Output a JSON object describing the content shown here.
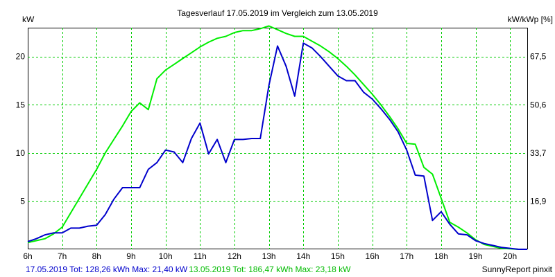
{
  "chart_data": {
    "type": "line",
    "title": "Tagesverlauf 17.05.2019 im Vergleich zum 13.05.2019",
    "ylabel_left": "kW",
    "ylabel_right": "kW/kWp [%]",
    "x_unit": "hour",
    "xlim": [
      6,
      20.5
    ],
    "ylim": [
      0,
      23
    ],
    "x_ticks": [
      6,
      7,
      8,
      9,
      10,
      11,
      12,
      13,
      14,
      15,
      16,
      17,
      18,
      19,
      20
    ],
    "x_tick_labels": [
      "6h",
      "7h",
      "8h",
      "9h",
      "10h",
      "11h",
      "12h",
      "13h",
      "14h",
      "15h",
      "16h",
      "17h",
      "18h",
      "19h",
      "20h"
    ],
    "y_ticks_left": [
      5,
      10,
      15,
      20
    ],
    "y_tick_labels_left": [
      "5",
      "10",
      "15",
      "20"
    ],
    "y_ticks_right_at": [
      5,
      10,
      15,
      20
    ],
    "y_tick_labels_right": [
      "16,9",
      "33,7",
      "50,6",
      "67,5"
    ],
    "grid": true,
    "series": [
      {
        "name": "17.05.2019",
        "color": "#0000cc",
        "legend": "17.05.2019 Tot: 128,26 kWh Max: 21,40 kW",
        "x": [
          6.0,
          6.25,
          6.5,
          6.75,
          7.0,
          7.25,
          7.5,
          7.75,
          8.0,
          8.25,
          8.5,
          8.75,
          9.0,
          9.25,
          9.5,
          9.75,
          10.0,
          10.25,
          10.5,
          10.75,
          11.0,
          11.25,
          11.5,
          11.75,
          12.0,
          12.25,
          12.5,
          12.75,
          13.0,
          13.25,
          13.5,
          13.75,
          14.0,
          14.25,
          14.5,
          14.75,
          15.0,
          15.25,
          15.5,
          15.75,
          16.0,
          16.25,
          16.5,
          16.75,
          17.0,
          17.25,
          17.5,
          17.75,
          18.0,
          18.25,
          18.5,
          18.75,
          19.0,
          19.25,
          19.5,
          19.75,
          20.0,
          20.25,
          20.5
        ],
        "values": [
          0.8,
          1.1,
          1.5,
          1.7,
          1.7,
          2.2,
          2.2,
          2.4,
          2.5,
          3.6,
          5.2,
          6.4,
          6.4,
          6.4,
          8.3,
          9.0,
          10.3,
          10.1,
          9.0,
          11.5,
          13.1,
          9.9,
          11.4,
          9.0,
          11.4,
          11.4,
          11.5,
          11.5,
          17.0,
          21.1,
          19.0,
          15.9,
          21.4,
          20.9,
          20.0,
          19.0,
          18.0,
          17.5,
          17.5,
          16.3,
          15.6,
          14.6,
          13.5,
          12.2,
          10.3,
          7.7,
          7.6,
          3.0,
          3.9,
          2.6,
          1.6,
          1.5,
          0.9,
          0.6,
          0.4,
          0.2,
          0.1,
          0.0,
          0.0
        ]
      },
      {
        "name": "13.05.2019",
        "color": "#00ee00",
        "legend": "13.05.2019 Tot: 186,47 kWh Max: 23,18 kW",
        "x": [
          6.0,
          6.25,
          6.5,
          6.75,
          7.0,
          7.25,
          7.5,
          7.75,
          8.0,
          8.25,
          8.5,
          8.75,
          9.0,
          9.25,
          9.5,
          9.75,
          10.0,
          10.25,
          10.5,
          10.75,
          11.0,
          11.25,
          11.5,
          11.75,
          12.0,
          12.25,
          12.5,
          12.75,
          13.0,
          13.25,
          13.5,
          13.75,
          14.0,
          14.25,
          14.5,
          14.75,
          15.0,
          15.25,
          15.5,
          15.75,
          16.0,
          16.25,
          16.5,
          16.75,
          17.0,
          17.25,
          17.5,
          17.75,
          18.0,
          18.25,
          18.5,
          18.75,
          19.0,
          19.25,
          19.5,
          19.75,
          20.0,
          20.25,
          20.5
        ],
        "values": [
          0.7,
          0.9,
          1.1,
          1.6,
          2.3,
          3.8,
          5.3,
          6.8,
          8.3,
          10.0,
          11.4,
          12.8,
          14.3,
          15.2,
          14.5,
          17.7,
          18.6,
          19.2,
          19.8,
          20.4,
          21.0,
          21.5,
          21.9,
          22.1,
          22.5,
          22.7,
          22.7,
          22.9,
          23.18,
          22.8,
          22.4,
          22.1,
          22.1,
          21.6,
          21.1,
          20.5,
          19.8,
          19.0,
          18.1,
          17.1,
          16.1,
          15.0,
          13.8,
          12.5,
          11.0,
          10.9,
          8.5,
          7.8,
          5.3,
          2.8,
          2.3,
          1.7,
          1.0,
          0.5,
          0.3,
          0.1,
          0.05,
          0.0,
          0.0
        ]
      }
    ]
  },
  "footer": {
    "legend_blue": "17.05.2019 Tot: 128,26 kWh Max: 21,40 kW",
    "legend_green": "13.05.2019 Tot: 186,47 kWh Max: 23,18 kW",
    "credit": "SunnyReport pinxit"
  }
}
